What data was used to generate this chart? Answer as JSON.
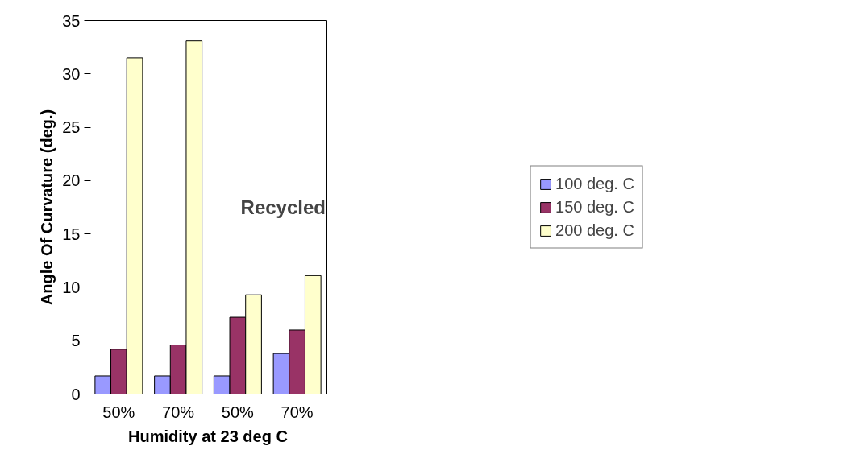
{
  "chart_data": {
    "type": "bar",
    "xlabel": "Humidity at 23 deg C",
    "ylabel": "Angle Of Curvature (deg.)",
    "categories": [
      "50%",
      "70%",
      "50%",
      "70%"
    ],
    "series": [
      {
        "name": "100 deg. C",
        "color": "#9999ff",
        "values": [
          1.7,
          1.7,
          1.7,
          3.8
        ]
      },
      {
        "name": "150 deg. C",
        "color": "#993366",
        "values": [
          4.2,
          4.6,
          7.2,
          6.0
        ]
      },
      {
        "name": "200 deg. C",
        "color": "#ffffcc",
        "values": [
          31.5,
          33.1,
          9.3,
          11.1
        ]
      }
    ],
    "ylim": [
      0,
      35
    ],
    "yticks": [
      0,
      5,
      10,
      15,
      20,
      25,
      30,
      35
    ],
    "annotations": [
      "Recycled"
    ],
    "legend": "right",
    "grid": false
  }
}
